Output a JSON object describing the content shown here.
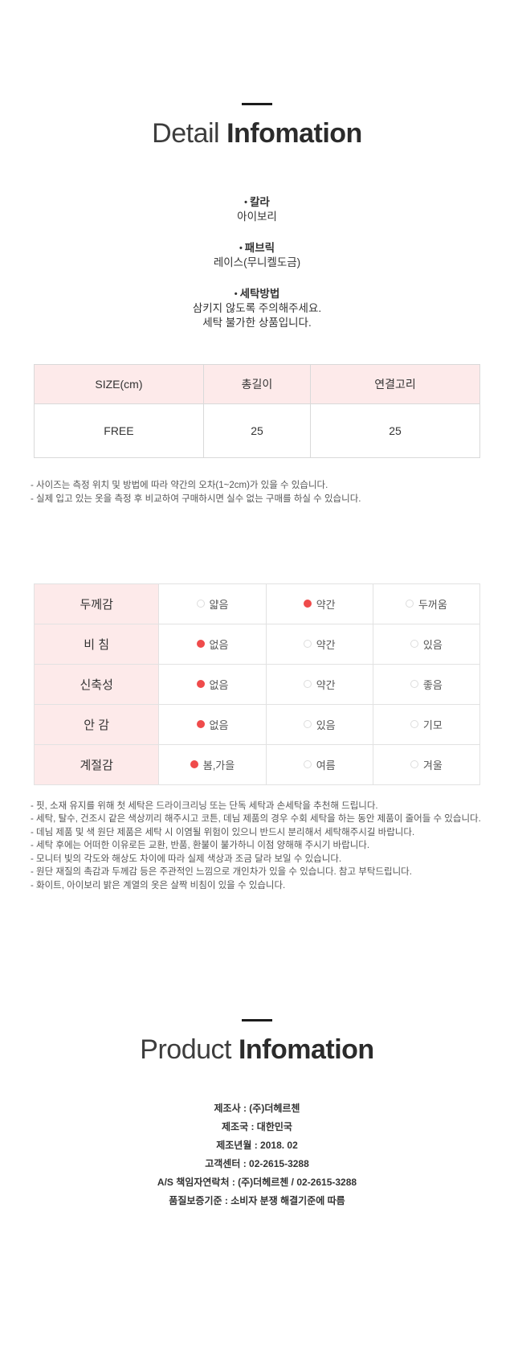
{
  "colors": {
    "header_pink": "#fdeaea",
    "dot_red": "#ef4b4b",
    "border_gray": "#d9d9d9"
  },
  "detail": {
    "title_light": "Detail",
    "title_bold": "Infomation",
    "specs": [
      {
        "label": "칼라",
        "lines": [
          "아이보리"
        ]
      },
      {
        "label": "패브릭",
        "lines": [
          "레이스(무니켈도금)"
        ]
      },
      {
        "label": "세탁방법",
        "lines": [
          "삼키지 않도록 주의해주세요.",
          "세탁 불가한 상품입니다."
        ]
      }
    ]
  },
  "size_table": {
    "headers": [
      "SIZE(cm)",
      "총길이",
      "연결고리"
    ],
    "rows": [
      [
        "FREE",
        "25",
        "25"
      ]
    ],
    "notes": [
      "- 사이즈는 측정 위치 및 방법에 따라 약간의 오차(1~2cm)가 있을 수 있습니다.",
      "- 실제 입고 있는 옷을 측정 후 비교하여 구매하시면 실수 없는 구매를 하실 수 있습니다."
    ]
  },
  "attr_table": {
    "rows": [
      {
        "label": "두께감",
        "options": [
          {
            "text": "얇음",
            "selected": false
          },
          {
            "text": "약간",
            "selected": true
          },
          {
            "text": "두꺼움",
            "selected": false
          }
        ]
      },
      {
        "label": "비  침",
        "options": [
          {
            "text": "없음",
            "selected": true
          },
          {
            "text": "약간",
            "selected": false
          },
          {
            "text": "있음",
            "selected": false
          }
        ]
      },
      {
        "label": "신축성",
        "options": [
          {
            "text": "없음",
            "selected": true
          },
          {
            "text": "약간",
            "selected": false
          },
          {
            "text": "좋음",
            "selected": false
          }
        ]
      },
      {
        "label": "안  감",
        "options": [
          {
            "text": "없음",
            "selected": true
          },
          {
            "text": "있음",
            "selected": false
          },
          {
            "text": "기모",
            "selected": false
          }
        ]
      },
      {
        "label": "계절감",
        "options": [
          {
            "text": "봄,가을",
            "selected": true
          },
          {
            "text": "여름",
            "selected": false
          },
          {
            "text": "겨울",
            "selected": false
          }
        ]
      }
    ],
    "notes": [
      "- 핏, 소재 유지를 위해 첫 세탁은 드라이크리닝 또는 단독 세탁과 손세탁을 추천해 드립니다.",
      "- 세탁, 탈수, 건조시 같은 색상끼리 해주시고 코튼, 데님 제품의 경우 수회 세탁을 하는 동안 제품이 줄어들 수 있습니다.",
      "- 데님 제품 및 색 원단 제품은 세탁 시 이염될 위험이 있으니 반드시 분리해서 세탁해주시길 바랍니다.",
      "- 세탁 후에는 어떠한 이유로든 교환, 반품, 환불이 불가하니 이점 양해해 주시기 바랍니다.",
      "- 모니터 빛의 각도와 해상도 차이에 따라 실제 색상과 조금 달라 보일 수 있습니다.",
      "- 원단 재질의 촉감과 두께감 등은 주관적인 느낌으로 개인차가 있을 수 있습니다. 참고 부탁드립니다.",
      "- 화이트, 아이보리 밝은 계열의 옷은 살짝 비침이 있을 수 있습니다."
    ]
  },
  "product": {
    "title_light": "Product",
    "title_bold": "Infomation",
    "lines": [
      "제조사 : (주)더헤르첸",
      "제조국 : 대한민국",
      "제조년월 : 2018. 02",
      "고객센터 : 02-2615-3288",
      "A/S 책임자연락처 : (주)더헤르첸 / 02-2615-3288",
      "품질보증기준 : 소비자 분쟁 해결기준에 따름"
    ]
  }
}
